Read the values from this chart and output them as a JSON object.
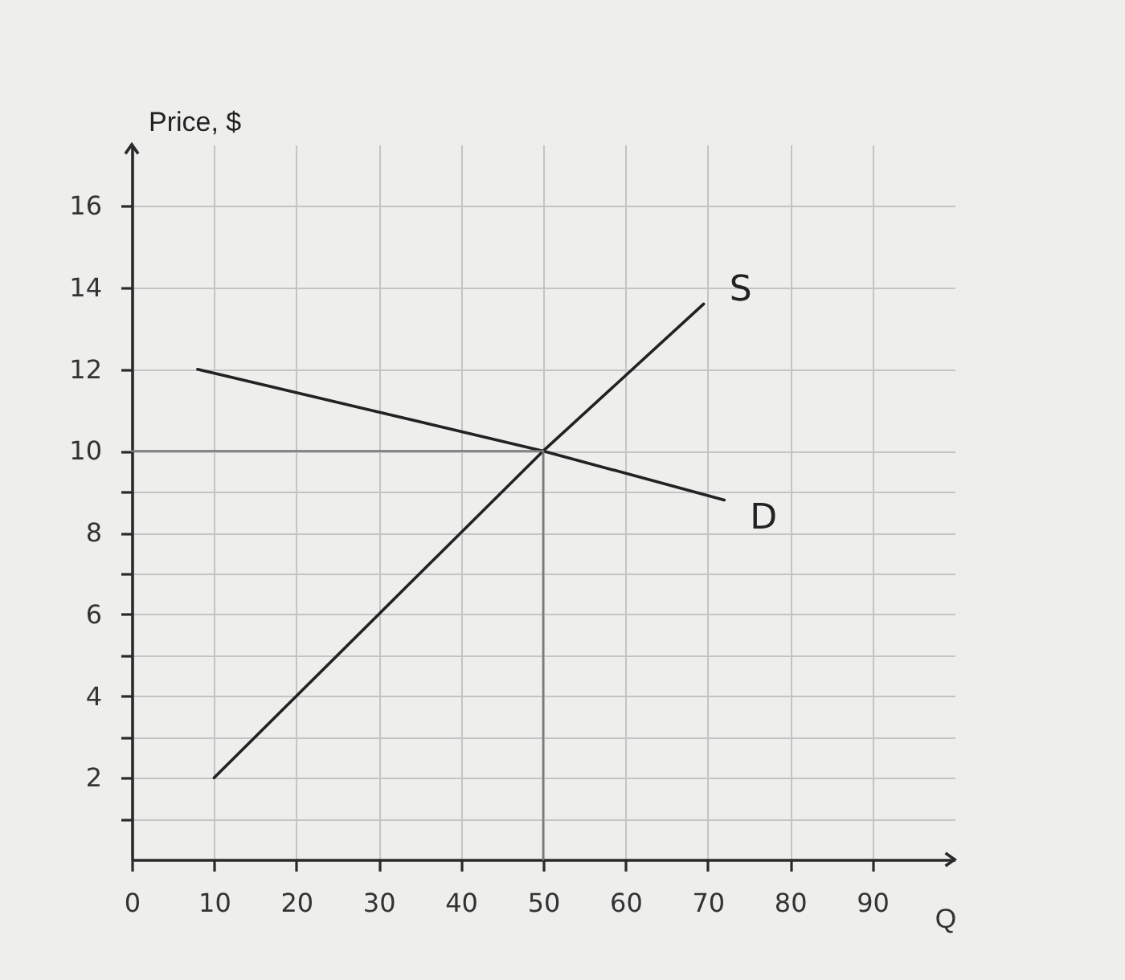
{
  "chart_data": {
    "type": "line",
    "xlabel": "Q",
    "ylabel": "Price, $",
    "series": [
      {
        "name": "S",
        "color": "#222222",
        "x": [
          10,
          50,
          69.5
        ],
        "values": [
          2,
          10,
          13.6
        ]
      },
      {
        "name": "D",
        "color": "#222222",
        "x": [
          8,
          50,
          72
        ],
        "values": [
          12,
          10,
          8.8
        ]
      },
      {
        "color": "#7a7a7a",
        "x": [
          0,
          50,
          50
        ],
        "values": [
          10,
          10,
          0
        ]
      }
    ],
    "xlim": [
      0,
      100
    ],
    "ylim": [
      0,
      17.5
    ],
    "xticks": [
      0,
      10,
      20,
      30,
      40,
      50,
      60,
      70,
      80,
      90
    ],
    "yticks": [
      {
        "value": 1,
        "label": null
      },
      2,
      {
        "value": 3,
        "label": null
      },
      4,
      {
        "value": 5,
        "label": null
      },
      6,
      {
        "value": 7,
        "label": null
      },
      8,
      {
        "value": 9,
        "label": null
      },
      10,
      12,
      14,
      16
    ],
    "grid": true
  }
}
